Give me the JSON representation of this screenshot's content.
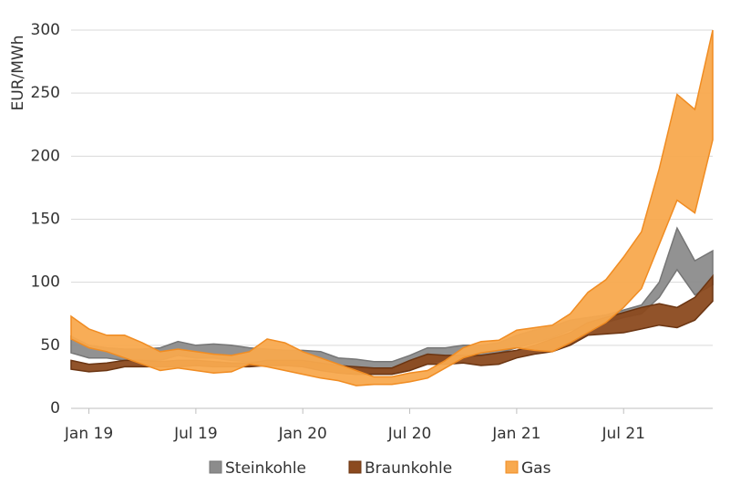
{
  "chart_data": {
    "type": "range_area",
    "y_label": "EUR/MWh",
    "categories": [
      null,
      "Jan 19",
      null,
      null,
      null,
      null,
      null,
      "Jul 19",
      null,
      null,
      null,
      null,
      null,
      "Jan 20",
      null,
      null,
      null,
      null,
      null,
      "Jul 20",
      null,
      null,
      null,
      null,
      null,
      "Jan 21",
      null,
      null,
      null,
      null,
      null,
      "Jul 21",
      null,
      null,
      null,
      null,
      null
    ],
    "ylim": [
      0,
      300
    ],
    "yticks": [
      0,
      50,
      100,
      150,
      200,
      250,
      300
    ],
    "grid": true,
    "legend": "bottom",
    "series": [
      {
        "name": "Steinkohle",
        "color": "#8c8c8c",
        "stroke": "#767676",
        "high": [
          57,
          50,
          48,
          47,
          47,
          48,
          53,
          50,
          51,
          50,
          48,
          47,
          46,
          46,
          45,
          40,
          39,
          37,
          37,
          42,
          48,
          48,
          50,
          50,
          52,
          58,
          62,
          65,
          70,
          72,
          74,
          78,
          82,
          100,
          143,
          117,
          125
        ],
        "low": [
          44,
          40,
          40,
          38,
          38,
          38,
          42,
          40,
          40,
          38,
          37,
          36,
          36,
          35,
          32,
          28,
          27,
          27,
          27,
          30,
          36,
          38,
          40,
          42,
          44,
          48,
          52,
          56,
          62,
          65,
          68,
          72,
          75,
          88,
          110,
          90,
          98
        ]
      },
      {
        "name": "Braunkohle",
        "color": "#8b4a1f",
        "stroke": "#6b3512",
        "high": [
          38,
          35,
          36,
          38,
          38,
          37,
          38,
          38,
          37,
          36,
          36,
          38,
          38,
          38,
          36,
          34,
          33,
          32,
          32,
          38,
          43,
          42,
          42,
          42,
          44,
          46,
          50,
          55,
          60,
          68,
          72,
          76,
          80,
          83,
          80,
          88,
          105
        ],
        "low": [
          31,
          29,
          30,
          33,
          33,
          33,
          33,
          34,
          33,
          33,
          33,
          34,
          34,
          33,
          30,
          28,
          27,
          27,
          27,
          30,
          35,
          35,
          36,
          34,
          35,
          40,
          43,
          45,
          50,
          58,
          59,
          60,
          63,
          66,
          64,
          70,
          85
        ]
      },
      {
        "name": "Gas",
        "color": "#f8a94e",
        "stroke": "#f08c22",
        "high": [
          73,
          63,
          58,
          58,
          52,
          45,
          47,
          45,
          43,
          42,
          45,
          55,
          52,
          45,
          40,
          35,
          30,
          25,
          25,
          28,
          30,
          38,
          48,
          53,
          54,
          62,
          64,
          66,
          75,
          92,
          102,
          120,
          140,
          190,
          249,
          237,
          300
        ],
        "low": [
          55,
          48,
          45,
          40,
          35,
          30,
          32,
          30,
          28,
          29,
          35,
          33,
          30,
          27,
          24,
          22,
          18,
          19,
          19,
          21,
          24,
          32,
          40,
          44,
          46,
          48,
          46,
          45,
          52,
          60,
          68,
          80,
          95,
          130,
          165,
          155,
          213
        ]
      }
    ]
  }
}
